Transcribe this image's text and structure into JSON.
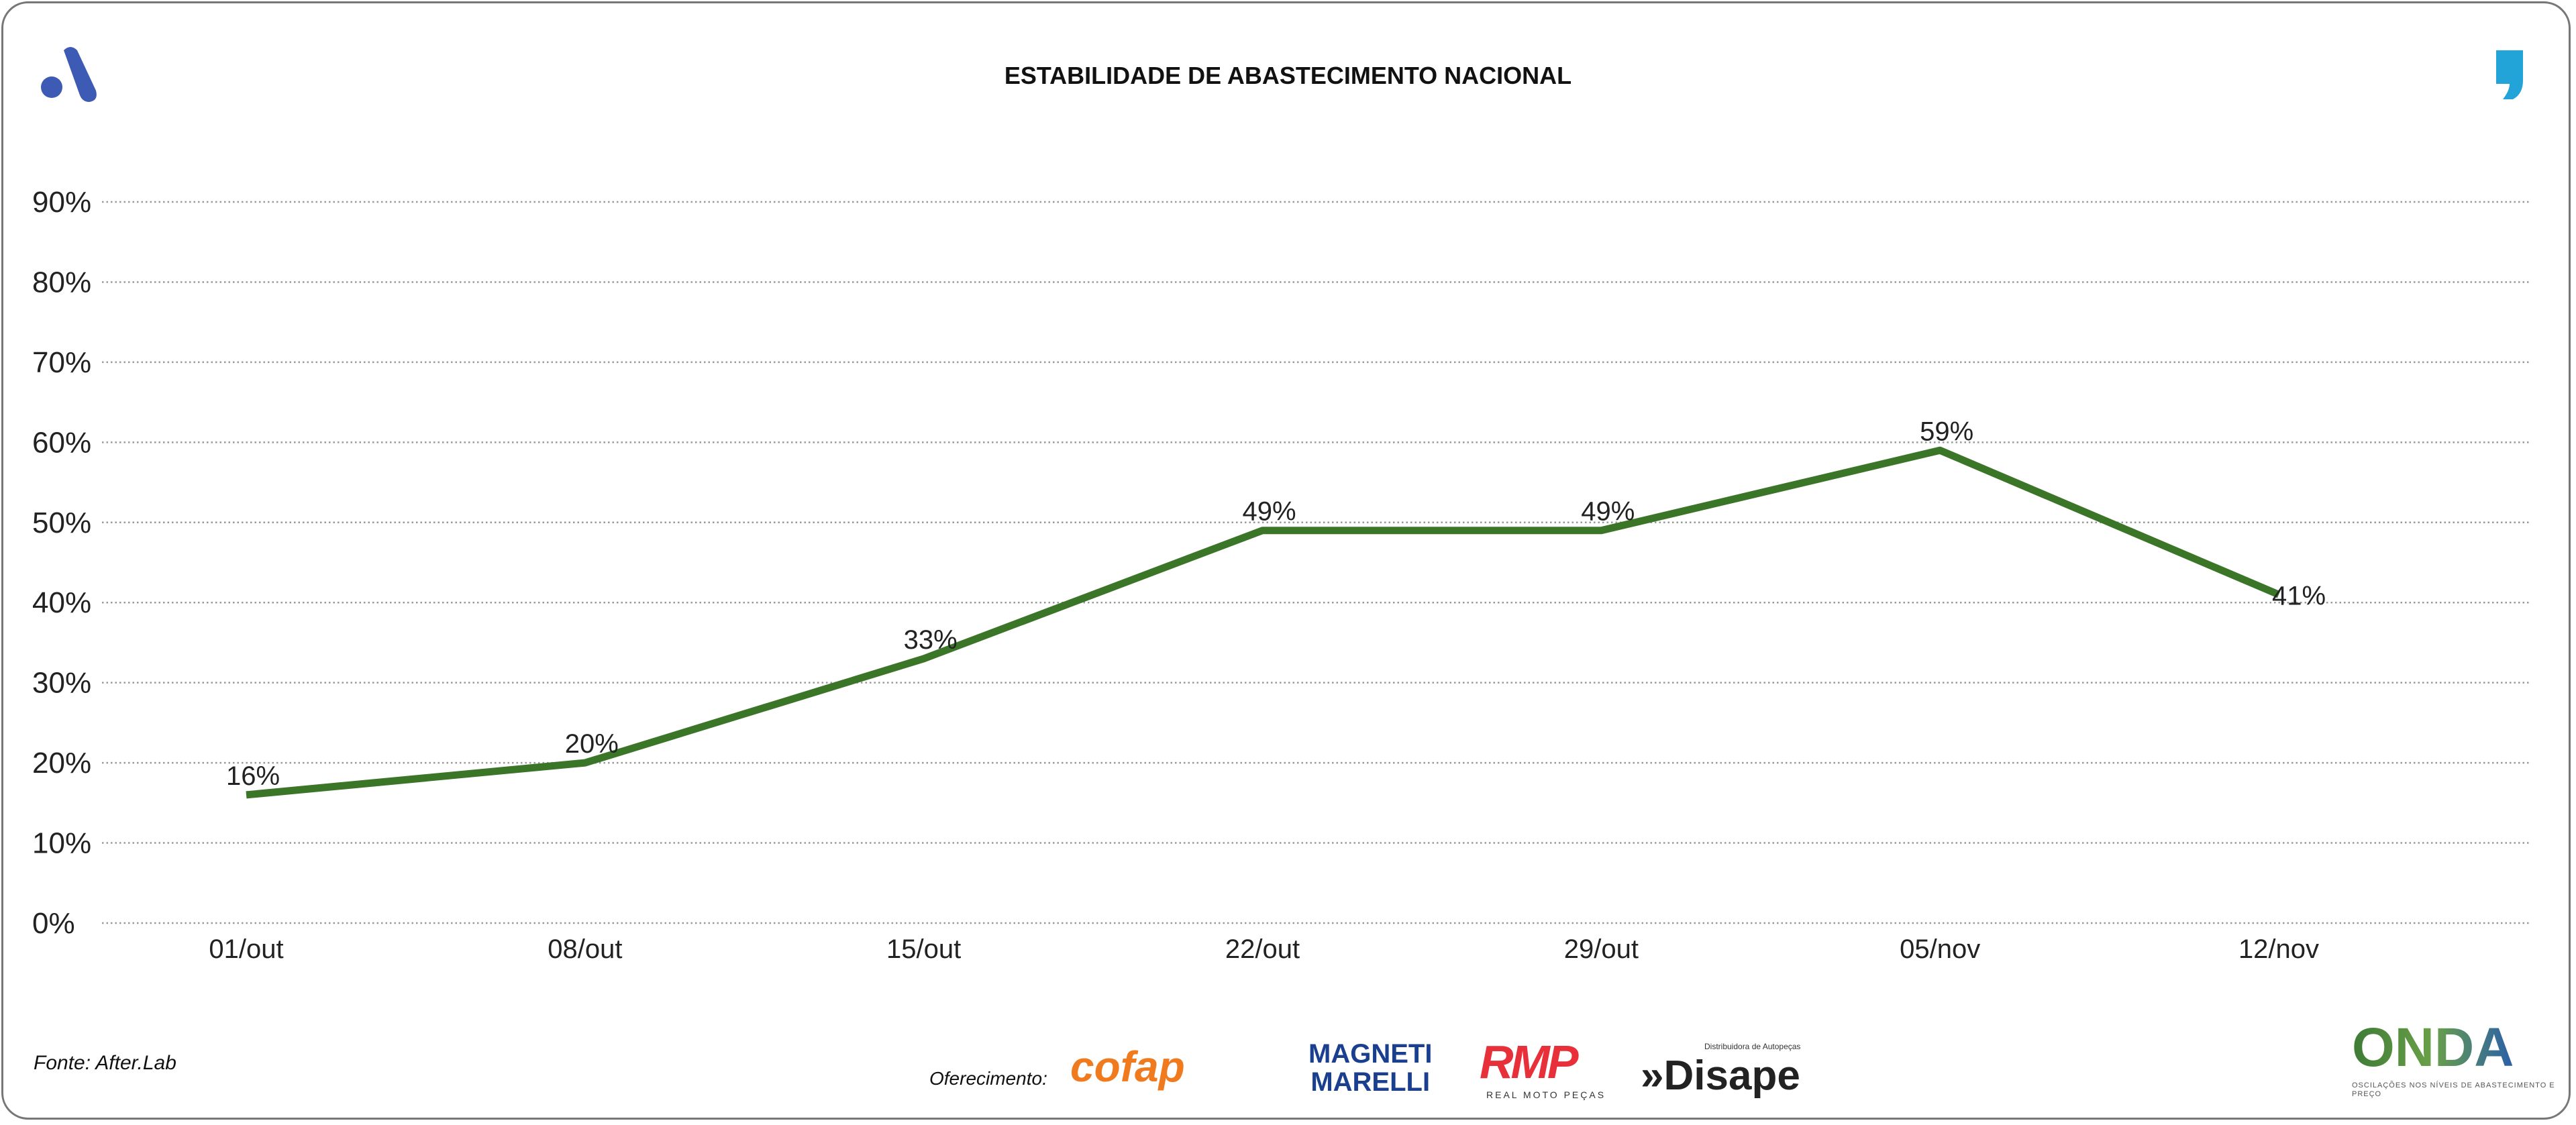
{
  "header": {
    "title": "ESTABILIDADE DE ABASTECIMENTO NACIONAL"
  },
  "footer": {
    "source": "Fonte: After.Lab",
    "sponsor_label": "Oferecimento:",
    "sponsors": {
      "cofap": "cofap",
      "magneti": "MAGNETI",
      "marelli": "MARELLI",
      "rmp": "RMP",
      "rmp_sub": "REAL MOTO PEÇAS",
      "disape": "»Disape",
      "disape_sub": "Distribuidora de Autopeças"
    },
    "onda": "ONDA",
    "onda_sub": "OSCILAÇÕES NOS NÍVEIS DE ABASTECIMENTO E PREÇO"
  },
  "colors": {
    "line": "#3b7527",
    "grid": "#999999",
    "logo_a": "#3d5bb5",
    "logo_quote": "#22a4d8"
  },
  "chart_data": {
    "type": "line",
    "title": "ESTABILIDADE DE ABASTECIMENTO NACIONAL",
    "xlabel": "",
    "ylabel": "",
    "categories": [
      "01/out",
      "08/out",
      "15/out",
      "22/out",
      "29/out",
      "05/nov",
      "12/nov"
    ],
    "values": [
      16,
      20,
      33,
      49,
      49,
      59,
      41
    ],
    "data_labels": [
      "16%",
      "20%",
      "33%",
      "49%",
      "49%",
      "59%",
      "41%"
    ],
    "ylim": [
      0,
      90
    ],
    "yticks": [
      0,
      10,
      20,
      30,
      40,
      50,
      60,
      70,
      80,
      90
    ],
    "ytick_labels": [
      "0%",
      "10%",
      "20%",
      "30%",
      "40%",
      "50%",
      "60%",
      "70%",
      "80%",
      "90%"
    ],
    "grid": true,
    "legend": "none"
  }
}
